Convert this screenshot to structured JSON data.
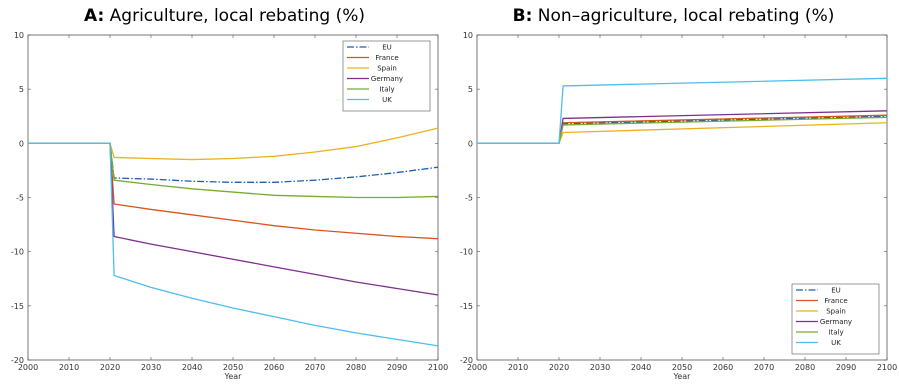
{
  "chart_data": [
    {
      "type": "line",
      "panel_letter": "A:",
      "title": "Agriculture, local rebating (%)",
      "xlabel": "Year",
      "ylabel": "",
      "xlim": [
        2000,
        2100
      ],
      "ylim": [
        -20,
        10
      ],
      "xticks": [
        2000,
        2010,
        2020,
        2030,
        2040,
        2050,
        2060,
        2070,
        2080,
        2090,
        2100
      ],
      "yticks": [
        10,
        5,
        0,
        -5,
        -10,
        -15,
        -20
      ],
      "grid": false,
      "legend_position": "top-right",
      "series": [
        {
          "name": "EU",
          "color": "#1f5fa8",
          "dash": "dashdot",
          "points": [
            [
              2000,
              0
            ],
            [
              2020,
              0
            ],
            [
              2021,
              -3.2
            ],
            [
              2030,
              -3.3
            ],
            [
              2040,
              -3.5
            ],
            [
              2050,
              -3.6
            ],
            [
              2060,
              -3.6
            ],
            [
              2070,
              -3.4
            ],
            [
              2080,
              -3.1
            ],
            [
              2090,
              -2.7
            ],
            [
              2100,
              -2.2
            ]
          ]
        },
        {
          "name": "France",
          "color": "#d9541e",
          "dash": "solid",
          "points": [
            [
              2000,
              0
            ],
            [
              2020,
              0
            ],
            [
              2021,
              -5.6
            ],
            [
              2030,
              -6.1
            ],
            [
              2040,
              -6.6
            ],
            [
              2050,
              -7.1
            ],
            [
              2060,
              -7.6
            ],
            [
              2070,
              -8.0
            ],
            [
              2080,
              -8.3
            ],
            [
              2090,
              -8.6
            ],
            [
              2100,
              -8.8
            ]
          ]
        },
        {
          "name": "Spain",
          "color": "#edb120",
          "dash": "solid",
          "points": [
            [
              2000,
              0
            ],
            [
              2020,
              0
            ],
            [
              2021,
              -1.3
            ],
            [
              2030,
              -1.4
            ],
            [
              2040,
              -1.5
            ],
            [
              2050,
              -1.4
            ],
            [
              2060,
              -1.2
            ],
            [
              2070,
              -0.8
            ],
            [
              2080,
              -0.3
            ],
            [
              2090,
              0.5
            ],
            [
              2100,
              1.4
            ]
          ]
        },
        {
          "name": "Germany",
          "color": "#7e2f8e",
          "dash": "solid",
          "points": [
            [
              2000,
              0
            ],
            [
              2020,
              0
            ],
            [
              2021,
              -8.6
            ],
            [
              2030,
              -9.3
            ],
            [
              2040,
              -10.0
            ],
            [
              2050,
              -10.7
            ],
            [
              2060,
              -11.4
            ],
            [
              2070,
              -12.1
            ],
            [
              2080,
              -12.8
            ],
            [
              2090,
              -13.4
            ],
            [
              2100,
              -14.0
            ]
          ]
        },
        {
          "name": "Italy",
          "color": "#77ac30",
          "dash": "solid",
          "points": [
            [
              2000,
              0
            ],
            [
              2020,
              0
            ],
            [
              2021,
              -3.4
            ],
            [
              2030,
              -3.8
            ],
            [
              2040,
              -4.2
            ],
            [
              2050,
              -4.5
            ],
            [
              2060,
              -4.8
            ],
            [
              2070,
              -4.9
            ],
            [
              2080,
              -5.0
            ],
            [
              2090,
              -5.0
            ],
            [
              2100,
              -4.9
            ]
          ]
        },
        {
          "name": "UK",
          "color": "#4dbeee",
          "dash": "solid",
          "points": [
            [
              2000,
              0
            ],
            [
              2020,
              0
            ],
            [
              2021,
              -12.2
            ],
            [
              2030,
              -13.3
            ],
            [
              2040,
              -14.3
            ],
            [
              2050,
              -15.2
            ],
            [
              2060,
              -16.0
            ],
            [
              2070,
              -16.8
            ],
            [
              2080,
              -17.5
            ],
            [
              2090,
              -18.1
            ],
            [
              2100,
              -18.7
            ]
          ]
        }
      ]
    },
    {
      "type": "line",
      "panel_letter": "B:",
      "title": "Non–agriculture, local rebating (%)",
      "xlabel": "Year",
      "ylabel": "",
      "xlim": [
        2000,
        2100
      ],
      "ylim": [
        -20,
        10
      ],
      "xticks": [
        2000,
        2010,
        2020,
        2030,
        2040,
        2050,
        2060,
        2070,
        2080,
        2090,
        2100
      ],
      "yticks": [
        10,
        5,
        0,
        -5,
        -10,
        -15,
        -20
      ],
      "grid": false,
      "legend_position": "bottom-right",
      "series": [
        {
          "name": "EU",
          "color": "#1f5fa8",
          "dash": "dashdot",
          "points": [
            [
              2000,
              0
            ],
            [
              2020,
              0
            ],
            [
              2021,
              1.8
            ],
            [
              2100,
              2.5
            ]
          ]
        },
        {
          "name": "France",
          "color": "#d9541e",
          "dash": "solid",
          "points": [
            [
              2000,
              0
            ],
            [
              2020,
              0
            ],
            [
              2021,
              1.9
            ],
            [
              2100,
              2.6
            ]
          ]
        },
        {
          "name": "Spain",
          "color": "#edb120",
          "dash": "solid",
          "points": [
            [
              2000,
              0
            ],
            [
              2020,
              0
            ],
            [
              2021,
              1.0
            ],
            [
              2100,
              1.9
            ]
          ]
        },
        {
          "name": "Germany",
          "color": "#7e2f8e",
          "dash": "solid",
          "points": [
            [
              2000,
              0
            ],
            [
              2020,
              0
            ],
            [
              2021,
              2.3
            ],
            [
              2100,
              3.0
            ]
          ]
        },
        {
          "name": "Italy",
          "color": "#77ac30",
          "dash": "solid",
          "points": [
            [
              2000,
              0
            ],
            [
              2020,
              0
            ],
            [
              2021,
              1.7
            ],
            [
              2100,
              2.4
            ]
          ]
        },
        {
          "name": "UK",
          "color": "#4dbeee",
          "dash": "solid",
          "points": [
            [
              2000,
              0
            ],
            [
              2020,
              0
            ],
            [
              2021,
              5.3
            ],
            [
              2100,
              6.0
            ]
          ]
        }
      ]
    }
  ]
}
